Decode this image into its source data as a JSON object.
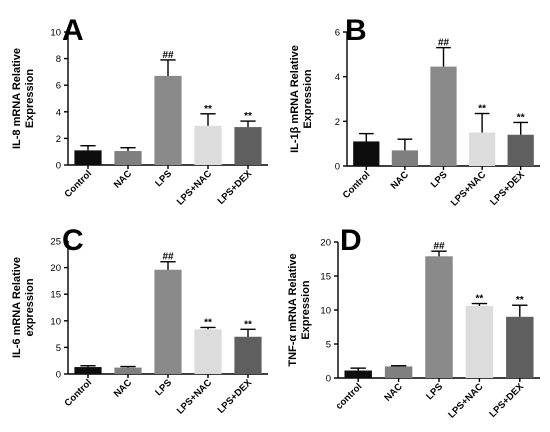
{
  "chart_data": [
    {
      "type": "bar",
      "panel_label": "A",
      "ylabel": [
        "IL-8 mRNA Relative",
        "Expression"
      ],
      "categories": [
        "Control",
        "NAC",
        "LPS",
        "LPS+NAC",
        "LPS+DEX"
      ],
      "values": [
        1.1,
        1.05,
        6.7,
        2.95,
        2.85
      ],
      "errors": [
        0.35,
        0.25,
        1.2,
        0.9,
        0.45
      ],
      "annotations": [
        "",
        "",
        "##",
        "**",
        "**"
      ],
      "ylim": [
        0,
        10
      ],
      "yticks": [
        0,
        2,
        4,
        6,
        8,
        10
      ]
    },
    {
      "type": "bar",
      "panel_label": "B",
      "ylabel": [
        "IL-1β mRNA Relative",
        "Expression"
      ],
      "categories": [
        "Control",
        "NAC",
        "LPS",
        "LPS+NAC",
        "LPS+DEX"
      ],
      "values": [
        1.1,
        0.7,
        4.45,
        1.5,
        1.4
      ],
      "errors": [
        0.35,
        0.5,
        0.85,
        0.85,
        0.55
      ],
      "annotations": [
        "",
        "",
        "##",
        "**",
        "**"
      ],
      "ylim": [
        0,
        6
      ],
      "yticks": [
        0,
        2,
        4,
        6
      ]
    },
    {
      "type": "bar",
      "panel_label": "C",
      "ylabel": [
        "IL-6 mRNA Relative",
        "expression"
      ],
      "categories": [
        "Control",
        "NAC",
        "LPS",
        "LPS+NAC",
        "LPS+DEX"
      ],
      "values": [
        1.3,
        1.2,
        19.6,
        8.4,
        7.0
      ],
      "errors": [
        0.25,
        0.2,
        1.5,
        0.35,
        1.4
      ],
      "annotations": [
        "",
        "",
        "##",
        "**",
        "**"
      ],
      "ylim": [
        0,
        25
      ],
      "yticks": [
        0,
        5,
        10,
        15,
        20,
        25
      ]
    },
    {
      "type": "bar",
      "panel_label": "D",
      "ylabel": [
        "TNF-α mRNA Relative",
        "Expression"
      ],
      "categories": [
        "control",
        "NAC",
        "LPS",
        "LPS+NAC",
        "LPS+DEX"
      ],
      "values": [
        1.1,
        1.7,
        17.9,
        10.6,
        9.0
      ],
      "errors": [
        0.35,
        0.1,
        0.75,
        0.35,
        1.7
      ],
      "annotations": [
        "",
        "",
        "##",
        "**",
        "**"
      ],
      "ylim": [
        0,
        20
      ],
      "yticks": [
        0,
        5,
        10,
        15,
        20
      ]
    }
  ],
  "colors": {
    "bars": [
      "#0d0d0d",
      "#7f7f7f",
      "#8a8a8a",
      "#dcdcdc",
      "#5f5f5f"
    ],
    "axes": "#000000"
  }
}
